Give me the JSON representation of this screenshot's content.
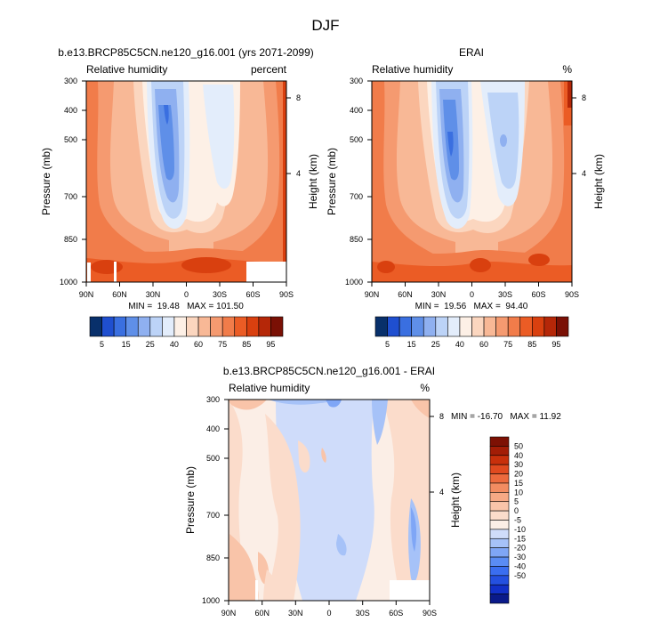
{
  "figure": {
    "title": "DJF"
  },
  "colors": {
    "abs": [
      "#08306b",
      "#1f4fd0",
      "#3a6fe0",
      "#5f8fe8",
      "#8fb0f0",
      "#bcd3f7",
      "#e3edfb",
      "#fdf0e6",
      "#fbd6bf",
      "#f8b896",
      "#f59a70",
      "#f17c4a",
      "#eb5c25",
      "#d9400f",
      "#b52708",
      "#7a1005"
    ],
    "diff": [
      "#0a1a8a",
      "#1230c8",
      "#2450e0",
      "#3a6ef0",
      "#5a8cf4",
      "#7fa6f6",
      "#a6c2f8",
      "#cfdcfa",
      "#fbeee6",
      "#fbdccb",
      "#f9c4a9",
      "#f6a985",
      "#f28c61",
      "#ec6a3d",
      "#e04a1f",
      "#c8300b",
      "#a31d06",
      "#7d1104"
    ]
  },
  "chart_data": [
    {
      "type": "heatmap",
      "title": "b.e13.BRCP85C5CN.ne120_g16.001 (yrs 2071-2099)",
      "left_string": "Relative humidity",
      "right_string": "percent",
      "ylabel": "Pressure (mb)",
      "y2label": "Height (km)",
      "x_ticks": [
        "90N",
        "60N",
        "30N",
        "0",
        "30S",
        "60S",
        "90S"
      ],
      "y_ticks": [
        "300",
        "400",
        "500",
        "700",
        "850",
        "1000"
      ],
      "y2_ticks": [
        "8",
        "4"
      ],
      "xlim": [
        90,
        -90
      ],
      "ylim": [
        1000,
        300
      ],
      "stats": "MIN =  19.48   MAX = 101.50",
      "levels": [
        "5",
        "15",
        "25",
        "40",
        "60",
        "75",
        "85",
        "95"
      ]
    },
    {
      "type": "heatmap",
      "title": "ERAI",
      "left_string": "Relative humidity",
      "right_string": "%",
      "ylabel": "Pressure (mb)",
      "y2label": "Height (km)",
      "x_ticks": [
        "90N",
        "60N",
        "30N",
        "0",
        "30S",
        "60S",
        "90S"
      ],
      "y_ticks": [
        "300",
        "400",
        "500",
        "700",
        "850",
        "1000"
      ],
      "y2_ticks": [
        "8",
        "4"
      ],
      "xlim": [
        90,
        -90
      ],
      "ylim": [
        1000,
        300
      ],
      "stats": "MIN =  19.56   MAX =  94.40",
      "levels": [
        "5",
        "15",
        "25",
        "40",
        "60",
        "75",
        "85",
        "95"
      ]
    },
    {
      "type": "heatmap",
      "title": "b.e13.BRCP85C5CN.ne120_g16.001 - ERAI",
      "left_string": "Relative humidity",
      "right_string": "%",
      "ylabel": "Pressure (mb)",
      "y2label": "Height (km)",
      "x_ticks": [
        "90N",
        "60N",
        "30N",
        "0",
        "30S",
        "60S",
        "90S"
      ],
      "y_ticks": [
        "300",
        "400",
        "500",
        "700",
        "850",
        "1000"
      ],
      "y2_ticks": [
        "8",
        "4"
      ],
      "xlim": [
        90,
        -90
      ],
      "ylim": [
        1000,
        300
      ],
      "stats": "MIN = -16.70   MAX = 11.92",
      "levels": [
        "50",
        "40",
        "30",
        "20",
        "15",
        "10",
        "5",
        "0",
        "-5",
        "-10",
        "-15",
        "-20",
        "-30",
        "-40",
        "-50"
      ]
    }
  ]
}
